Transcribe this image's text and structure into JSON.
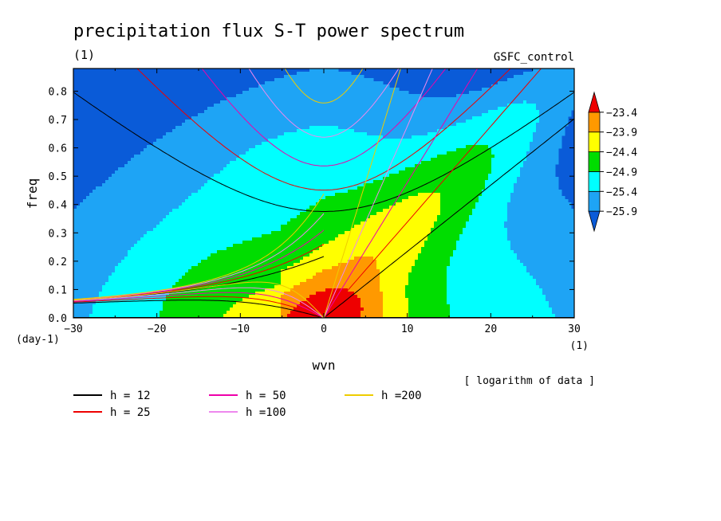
{
  "chart_data": {
    "type": "heatmap",
    "title": "precipitation flux S-T power spectrum",
    "units_label": "(1)",
    "dataset_label": "GSFC_control",
    "xlabel": "wvn",
    "ylabel": "freq",
    "x_units": "(1)",
    "y_units": "(day-1)",
    "xlim": [
      -30,
      30
    ],
    "ylim": [
      0,
      0.88
    ],
    "x_ticks": [
      -30,
      -20,
      -10,
      0,
      10,
      20,
      30
    ],
    "x_tick_labels": [
      "−30",
      "−20",
      "−10",
      "0",
      "10",
      "20",
      "30"
    ],
    "y_ticks": [
      0.0,
      0.1,
      0.2,
      0.3,
      0.4,
      0.5,
      0.6,
      0.7,
      0.8
    ],
    "y_tick_labels": [
      "0.0",
      "0.1",
      "0.2",
      "0.3",
      "0.4",
      "0.5",
      "0.6",
      "0.7",
      "0.8"
    ],
    "note": "[ logarithm of data ]",
    "colorbar": {
      "levels": [
        -25.9,
        -25.4,
        -24.9,
        -24.4,
        -23.9,
        -23.4
      ],
      "labels": [
        "−25.9",
        "−25.4",
        "−24.9",
        "−24.4",
        "−23.9",
        "−23.4"
      ],
      "colors": [
        "#0a5bd8",
        "#1ea4f5",
        "#00ffff",
        "#00dd00",
        "#ffff00",
        "#ff9900",
        "#ee0000"
      ]
    },
    "contour_levels": [
      {
        "level": 0,
        "color": "#0a5bd8"
      },
      {
        "level": 1,
        "color": "#1ea4f5"
      },
      {
        "level": 2,
        "color": "#00ffff"
      },
      {
        "level": 3,
        "color": "#00dd00"
      },
      {
        "level": 4,
        "color": "#ffff00"
      },
      {
        "level": 5,
        "color": "#ff9900"
      },
      {
        "level": 6,
        "color": "#ee0000"
      }
    ],
    "dispersion_curves": [
      {
        "h": 12,
        "label": "h = 12",
        "color": "#000000"
      },
      {
        "h": 25,
        "label": "h = 25",
        "color": "#ee0000"
      },
      {
        "h": 50,
        "label": "h = 50",
        "color": "#ee00aa"
      },
      {
        "h": 100,
        "label": "h =100",
        "color": "#ee88ee"
      },
      {
        "h": 200,
        "label": "h =200",
        "color": "#eecc00"
      }
    ]
  }
}
